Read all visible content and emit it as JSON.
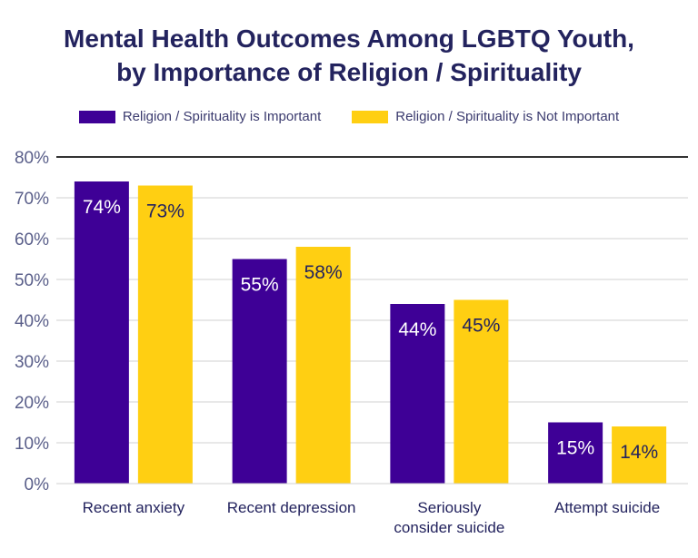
{
  "chart_data": {
    "type": "bar",
    "title": "Mental Health Outcomes Among LGBTQ Youth, by Importance of Religion / Spirituality",
    "title_lines": [
      "Mental Health Outcomes Among LGBTQ Youth,",
      "by Importance of Religion / Spirituality"
    ],
    "categories": [
      [
        "Recent anxiety"
      ],
      [
        "Recent depression"
      ],
      [
        "Seriously",
        "consider suicide"
      ],
      [
        "Attempt suicide"
      ]
    ],
    "series": [
      {
        "name": "Religion / Spirituality is Important",
        "color": "#3e0096",
        "label_color": "#ffffff",
        "values": [
          74,
          55,
          44,
          15
        ]
      },
      {
        "name": "Religion / Spirituality is Not Important",
        "color": "#ffcf12",
        "label_color": "#23235e",
        "values": [
          73,
          58,
          45,
          14
        ]
      }
    ],
    "ylim": [
      0,
      80
    ],
    "yticks": [
      0,
      10,
      20,
      30,
      40,
      50,
      60,
      70,
      80
    ],
    "ytick_suffix": "%",
    "grid": true,
    "legend": "top"
  }
}
